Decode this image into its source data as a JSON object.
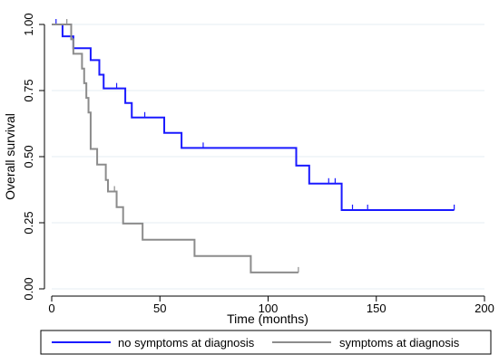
{
  "chart_data": {
    "type": "line",
    "title": "",
    "xlabel": "Time (months)",
    "ylabel": "Overall survival",
    "xlim": [
      0,
      200
    ],
    "ylim": [
      0,
      1
    ],
    "x_ticks": [
      "0",
      "50",
      "100",
      "150",
      "200"
    ],
    "y_ticks": [
      "0.00",
      "0.25",
      "0.50",
      "0.75",
      "1.00"
    ],
    "grid": true,
    "legend_position": "bottom",
    "colors": {
      "no_symptoms": "#1a1aff",
      "symptoms": "#8c8c8c",
      "grid": "#e6eef3",
      "axis": "#000000"
    },
    "series": [
      {
        "name": "no symptoms at diagnosis",
        "step": [
          [
            0,
            1.0
          ],
          [
            5,
            0.955
          ],
          [
            10,
            0.91
          ],
          [
            18,
            0.865
          ],
          [
            22,
            0.81
          ],
          [
            24,
            0.758
          ],
          [
            34,
            0.703
          ],
          [
            37,
            0.648
          ],
          [
            52,
            0.59
          ],
          [
            60,
            0.533
          ],
          [
            113,
            0.466
          ],
          [
            119,
            0.398
          ],
          [
            134,
            0.298
          ],
          [
            186,
            0.298
          ]
        ],
        "censor": [
          [
            2,
            1.0
          ],
          [
            30,
            0.758
          ],
          [
            43,
            0.648
          ],
          [
            70,
            0.533
          ],
          [
            128,
            0.398
          ],
          [
            131,
            0.398
          ],
          [
            139,
            0.298
          ],
          [
            146,
            0.298
          ],
          [
            186,
            0.298
          ]
        ]
      },
      {
        "name": "symptoms at diagnosis",
        "step": [
          [
            0,
            1.0
          ],
          [
            9,
            0.944
          ],
          [
            10,
            0.889
          ],
          [
            14,
            0.833
          ],
          [
            15,
            0.778
          ],
          [
            16,
            0.722
          ],
          [
            17,
            0.667
          ],
          [
            18,
            0.529
          ],
          [
            21,
            0.47
          ],
          [
            25,
            0.412
          ],
          [
            26,
            0.368
          ],
          [
            30,
            0.309
          ],
          [
            33,
            0.247
          ],
          [
            42,
            0.186
          ],
          [
            66,
            0.124
          ],
          [
            92,
            0.062
          ],
          [
            114,
            0.062
          ]
        ],
        "censor": [
          [
            7,
            1.0
          ],
          [
            29,
            0.368
          ],
          [
            114,
            0.062
          ]
        ]
      }
    ]
  }
}
